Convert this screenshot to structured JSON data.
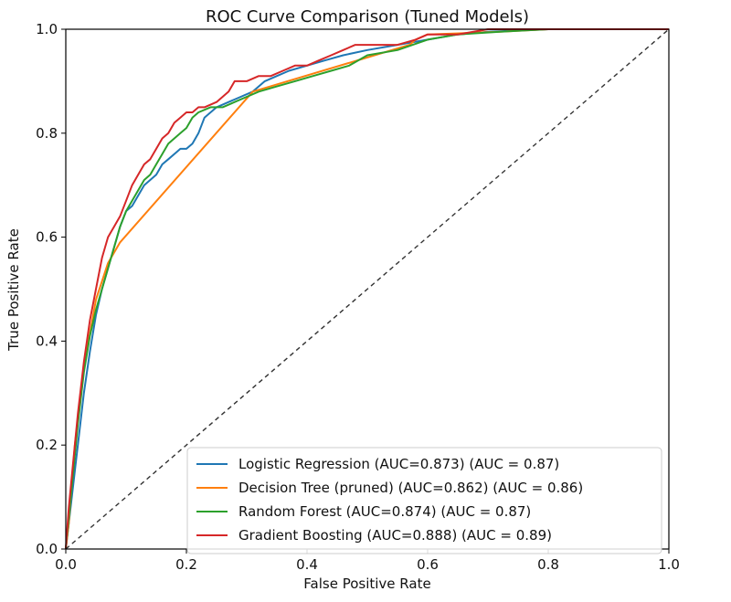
{
  "chart_data": {
    "type": "line",
    "title": "ROC Curve Comparison (Tuned Models)",
    "xlabel": "False Positive Rate",
    "ylabel": "True Positive Rate",
    "xlim": [
      0.0,
      1.0
    ],
    "ylim": [
      0.0,
      1.0
    ],
    "xticks": [
      "0.0",
      "0.2",
      "0.4",
      "0.6",
      "0.8",
      "1.0"
    ],
    "yticks": [
      "0.0",
      "0.2",
      "0.4",
      "0.6",
      "0.8",
      "1.0"
    ],
    "grid": false,
    "legend_position": "bottom-right",
    "series": [
      {
        "name": "Logistic Regression (AUC=0.873) (AUC = 0.87)",
        "color": "#1f77b4",
        "x": [
          0,
          0.005,
          0.01,
          0.015,
          0.02,
          0.03,
          0.04,
          0.05,
          0.06,
          0.07,
          0.08,
          0.09,
          0.1,
          0.11,
          0.12,
          0.13,
          0.14,
          0.15,
          0.16,
          0.17,
          0.18,
          0.19,
          0.2,
          0.21,
          0.22,
          0.23,
          0.25,
          0.27,
          0.29,
          0.31,
          0.33,
          0.35,
          0.37,
          0.4,
          0.43,
          0.46,
          0.5,
          0.55,
          0.6,
          0.65,
          0.7,
          0.8,
          1.0
        ],
        "y": [
          0,
          0.05,
          0.1,
          0.15,
          0.2,
          0.3,
          0.38,
          0.45,
          0.5,
          0.54,
          0.58,
          0.62,
          0.65,
          0.66,
          0.68,
          0.7,
          0.71,
          0.72,
          0.74,
          0.75,
          0.76,
          0.77,
          0.77,
          0.78,
          0.8,
          0.83,
          0.85,
          0.86,
          0.87,
          0.88,
          0.9,
          0.91,
          0.92,
          0.93,
          0.94,
          0.95,
          0.96,
          0.97,
          0.98,
          0.99,
          0.995,
          1.0,
          1.0
        ]
      },
      {
        "name": "Decision Tree (pruned) (AUC=0.862) (AUC = 0.86)",
        "color": "#ff7f0e",
        "x": [
          0,
          0.005,
          0.015,
          0.03,
          0.05,
          0.07,
          0.09,
          0.31,
          0.57,
          0.58,
          0.6,
          0.72,
          0.8,
          1.0
        ],
        "y": [
          0,
          0.05,
          0.2,
          0.35,
          0.48,
          0.55,
          0.59,
          0.88,
          0.97,
          0.98,
          0.99,
          0.995,
          1.0,
          1.0
        ]
      },
      {
        "name": "Random Forest (AUC=0.874) (AUC = 0.87)",
        "color": "#2ca02c",
        "x": [
          0,
          0.005,
          0.01,
          0.015,
          0.02,
          0.03,
          0.04,
          0.05,
          0.06,
          0.07,
          0.08,
          0.09,
          0.1,
          0.11,
          0.12,
          0.13,
          0.14,
          0.15,
          0.16,
          0.17,
          0.18,
          0.19,
          0.2,
          0.21,
          0.22,
          0.24,
          0.26,
          0.28,
          0.3,
          0.32,
          0.35,
          0.38,
          0.41,
          0.44,
          0.47,
          0.5,
          0.55,
          0.6,
          0.65,
          0.72,
          0.8,
          1.0
        ],
        "y": [
          0,
          0.06,
          0.12,
          0.18,
          0.24,
          0.34,
          0.41,
          0.46,
          0.5,
          0.54,
          0.58,
          0.62,
          0.65,
          0.67,
          0.69,
          0.71,
          0.72,
          0.74,
          0.76,
          0.78,
          0.79,
          0.8,
          0.81,
          0.83,
          0.84,
          0.85,
          0.85,
          0.86,
          0.87,
          0.88,
          0.89,
          0.9,
          0.91,
          0.92,
          0.93,
          0.95,
          0.96,
          0.98,
          0.99,
          0.995,
          1.0,
          1.0
        ]
      },
      {
        "name": "Gradient Boosting (AUC=0.888) (AUC = 0.89)",
        "color": "#d62728",
        "x": [
          0,
          0.005,
          0.01,
          0.015,
          0.02,
          0.03,
          0.04,
          0.05,
          0.06,
          0.07,
          0.08,
          0.09,
          0.1,
          0.11,
          0.12,
          0.13,
          0.14,
          0.15,
          0.16,
          0.17,
          0.18,
          0.19,
          0.2,
          0.21,
          0.22,
          0.23,
          0.25,
          0.27,
          0.28,
          0.3,
          0.32,
          0.34,
          0.36,
          0.38,
          0.4,
          0.42,
          0.44,
          0.46,
          0.48,
          0.5,
          0.55,
          0.58,
          0.6,
          0.65,
          0.7,
          0.8,
          1.0
        ],
        "y": [
          0,
          0.08,
          0.14,
          0.2,
          0.26,
          0.36,
          0.44,
          0.5,
          0.56,
          0.6,
          0.62,
          0.64,
          0.67,
          0.7,
          0.72,
          0.74,
          0.75,
          0.77,
          0.79,
          0.8,
          0.82,
          0.83,
          0.84,
          0.84,
          0.85,
          0.85,
          0.86,
          0.88,
          0.9,
          0.9,
          0.91,
          0.91,
          0.92,
          0.93,
          0.93,
          0.94,
          0.95,
          0.96,
          0.97,
          0.97,
          0.97,
          0.98,
          0.99,
          0.99,
          1.0,
          1.0,
          1.0
        ]
      },
      {
        "name": "chance-diagonal",
        "color": "#333333",
        "dashed": true,
        "x": [
          0,
          1
        ],
        "y": [
          0,
          1
        ]
      }
    ]
  }
}
